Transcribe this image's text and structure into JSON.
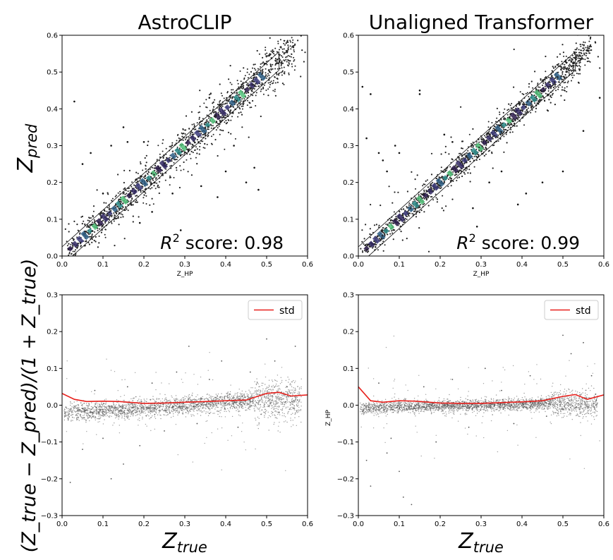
{
  "figure": {
    "y_label_top": "Z",
    "y_label_top_sub": "pred",
    "y_label_bottom": "(Z_true − Z_pred)/(1 + Z_true)",
    "x_label_bottom": "Z",
    "x_label_bottom_sub": "true"
  },
  "chart_data": [
    {
      "type": "scatter",
      "panel": "top-left",
      "title": "AstroCLIP",
      "xlabel": "Z_HP",
      "ylabel": "Z_pred",
      "xlim": [
        0,
        0.6
      ],
      "ylim": [
        0,
        0.6
      ],
      "xticks": [
        "0.0",
        "0.1",
        "0.2",
        "0.3",
        "0.4",
        "0.5",
        "0.6"
      ],
      "yticks": [
        "0.0",
        "0.1",
        "0.2",
        "0.3",
        "0.4",
        "0.5",
        "0.6"
      ],
      "annotation_prefix": "R",
      "annotation_sup": "2",
      "annotation_text": " score: 0.98",
      "r2": 0.98,
      "trend": {
        "x": [
          0.0,
          0.6
        ],
        "y": [
          0.0,
          0.6
        ],
        "spread": 0.016
      },
      "outliers": [
        {
          "x": 0.03,
          "y": 0.42
        },
        {
          "x": 0.05,
          "y": 0.25
        },
        {
          "x": 0.07,
          "y": 0.28
        },
        {
          "x": 0.12,
          "y": 0.3
        },
        {
          "x": 0.15,
          "y": 0.35
        },
        {
          "x": 0.16,
          "y": 0.31
        },
        {
          "x": 0.2,
          "y": 0.31
        },
        {
          "x": 0.22,
          "y": 0.12
        },
        {
          "x": 0.29,
          "y": 0.07
        },
        {
          "x": 0.34,
          "y": 0.19
        },
        {
          "x": 0.38,
          "y": 0.16
        },
        {
          "x": 0.4,
          "y": 0.23
        },
        {
          "x": 0.42,
          "y": 0.3
        },
        {
          "x": 0.45,
          "y": 0.2
        },
        {
          "x": 0.47,
          "y": 0.24
        },
        {
          "x": 0.48,
          "y": 0.18
        },
        {
          "x": 0.36,
          "y": 0.43
        },
        {
          "x": 0.27,
          "y": 0.17
        },
        {
          "x": 0.19,
          "y": 0.09
        },
        {
          "x": 0.1,
          "y": 0.17
        }
      ]
    },
    {
      "type": "scatter",
      "panel": "top-right",
      "title": "Unaligned Transformer",
      "xlabel": "Z_HP",
      "ylabel": "",
      "xlim": [
        0,
        0.6
      ],
      "ylim": [
        0,
        0.6
      ],
      "xticks": [
        "0.0",
        "0.1",
        "0.2",
        "0.3",
        "0.4",
        "0.5",
        "0.6"
      ],
      "yticks": [
        "0.0",
        "0.1",
        "0.2",
        "0.3",
        "0.4",
        "0.5",
        "0.6"
      ],
      "annotation_prefix": "R",
      "annotation_sup": "2",
      "annotation_text": " score: 0.99",
      "r2": 0.99,
      "trend": {
        "x": [
          0.0,
          0.6
        ],
        "y": [
          0.0,
          0.6
        ],
        "spread": 0.011
      },
      "outliers": [
        {
          "x": 0.01,
          "y": 0.46
        },
        {
          "x": 0.02,
          "y": 0.32
        },
        {
          "x": 0.03,
          "y": 0.44
        },
        {
          "x": 0.05,
          "y": 0.28
        },
        {
          "x": 0.06,
          "y": 0.26
        },
        {
          "x": 0.07,
          "y": 0.23
        },
        {
          "x": 0.09,
          "y": 0.3
        },
        {
          "x": 0.1,
          "y": 0.28
        },
        {
          "x": 0.15,
          "y": 0.45
        },
        {
          "x": 0.15,
          "y": 0.44
        },
        {
          "x": 0.21,
          "y": 0.33
        },
        {
          "x": 0.23,
          "y": 0.31
        },
        {
          "x": 0.28,
          "y": 0.13
        },
        {
          "x": 0.32,
          "y": 0.2
        },
        {
          "x": 0.35,
          "y": 0.23
        },
        {
          "x": 0.41,
          "y": 0.17
        },
        {
          "x": 0.45,
          "y": 0.2
        },
        {
          "x": 0.5,
          "y": 0.23
        },
        {
          "x": 0.55,
          "y": 0.34
        },
        {
          "x": 0.59,
          "y": 0.43
        },
        {
          "x": 0.39,
          "y": 0.14
        },
        {
          "x": 0.29,
          "y": 0.08
        }
      ]
    },
    {
      "type": "scatter",
      "panel": "bottom-left",
      "xlabel": "Z_true",
      "ylabel": "(Z_true − Z_pred)/(1 + Z_true)",
      "xlim": [
        0,
        0.6
      ],
      "ylim": [
        -0.3,
        0.3
      ],
      "xticks": [
        "0.0",
        "0.1",
        "0.2",
        "0.3",
        "0.4",
        "0.5",
        "0.6"
      ],
      "yticks": [
        "−0.3",
        "−0.2",
        "−0.1",
        "0.0",
        "0.1",
        "0.2",
        "0.3"
      ],
      "legend": {
        "label": "std",
        "color": "#e8201c",
        "placement": "top-right"
      },
      "band": {
        "x": [
          0.0,
          0.1,
          0.2,
          0.3,
          0.4,
          0.47
        ],
        "y": [
          -0.022,
          -0.015,
          -0.008,
          0.0,
          0.008,
          0.012
        ],
        "spread": 0.012
      },
      "scatter_points": [
        {
          "x": 0.05,
          "y": -0.12
        },
        {
          "x": 0.08,
          "y": 0.04
        },
        {
          "x": 0.1,
          "y": -0.09
        },
        {
          "x": 0.12,
          "y": -0.2
        },
        {
          "x": 0.16,
          "y": 0.05
        },
        {
          "x": 0.19,
          "y": -0.11
        },
        {
          "x": 0.22,
          "y": 0.06
        },
        {
          "x": 0.25,
          "y": -0.07
        },
        {
          "x": 0.28,
          "y": 0.09
        },
        {
          "x": 0.31,
          "y": 0.16
        },
        {
          "x": 0.33,
          "y": -0.05
        },
        {
          "x": 0.36,
          "y": 0.07
        },
        {
          "x": 0.39,
          "y": 0.12
        },
        {
          "x": 0.43,
          "y": -0.06
        },
        {
          "x": 0.46,
          "y": 0.09
        },
        {
          "x": 0.5,
          "y": 0.18
        },
        {
          "x": 0.52,
          "y": 0.12
        },
        {
          "x": 0.55,
          "y": 0.05
        },
        {
          "x": 0.57,
          "y": 0.16
        },
        {
          "x": 0.02,
          "y": -0.21
        },
        {
          "x": 0.15,
          "y": -0.16
        },
        {
          "x": 0.41,
          "y": 0.03
        },
        {
          "x": 0.53,
          "y": -0.02
        }
      ],
      "std_line": {
        "x": [
          0.0,
          0.03,
          0.06,
          0.1,
          0.14,
          0.2,
          0.25,
          0.3,
          0.35,
          0.4,
          0.45,
          0.5,
          0.53,
          0.56,
          0.6
        ],
        "y": [
          0.032,
          0.016,
          0.01,
          0.011,
          0.01,
          0.005,
          0.006,
          0.008,
          0.01,
          0.012,
          0.014,
          0.032,
          0.035,
          0.025,
          0.028
        ]
      }
    },
    {
      "type": "scatter",
      "panel": "bottom-right",
      "xlabel": "Z_true",
      "ylabel": "Z_HP",
      "xlim": [
        0,
        0.6
      ],
      "ylim": [
        -0.3,
        0.3
      ],
      "xticks": [
        "0.0",
        "0.1",
        "0.2",
        "0.3",
        "0.4",
        "0.5",
        "0.6"
      ],
      "yticks": [
        "−0.3",
        "−0.2",
        "−0.1",
        "0.0",
        "0.1",
        "0.2",
        "0.3"
      ],
      "legend": {
        "label": "std",
        "color": "#e8201c",
        "placement": "top-right"
      },
      "band": {
        "x": [
          0.0,
          0.1,
          0.2,
          0.3,
          0.4,
          0.47
        ],
        "y": [
          -0.008,
          -0.004,
          -0.002,
          0.0,
          0.002,
          0.004
        ],
        "spread": 0.008
      },
      "scatter_points": [
        {
          "x": 0.02,
          "y": -0.15
        },
        {
          "x": 0.03,
          "y": -0.22
        },
        {
          "x": 0.05,
          "y": 0.06
        },
        {
          "x": 0.08,
          "y": -0.09
        },
        {
          "x": 0.1,
          "y": -0.18
        },
        {
          "x": 0.13,
          "y": -0.27
        },
        {
          "x": 0.16,
          "y": 0.05
        },
        {
          "x": 0.19,
          "y": -0.1
        },
        {
          "x": 0.23,
          "y": 0.07
        },
        {
          "x": 0.27,
          "y": -0.06
        },
        {
          "x": 0.31,
          "y": 0.1
        },
        {
          "x": 0.35,
          "y": 0.04
        },
        {
          "x": 0.38,
          "y": -0.05
        },
        {
          "x": 0.42,
          "y": 0.08
        },
        {
          "x": 0.46,
          "y": -0.03
        },
        {
          "x": 0.5,
          "y": 0.19
        },
        {
          "x": 0.52,
          "y": 0.14
        },
        {
          "x": 0.55,
          "y": 0.17
        },
        {
          "x": 0.57,
          "y": 0.08
        },
        {
          "x": 0.58,
          "y": 0.03
        },
        {
          "x": 0.11,
          "y": -0.25
        },
        {
          "x": 0.07,
          "y": -0.13
        }
      ],
      "std_line": {
        "x": [
          0.0,
          0.03,
          0.06,
          0.1,
          0.14,
          0.2,
          0.25,
          0.3,
          0.35,
          0.4,
          0.45,
          0.5,
          0.53,
          0.56,
          0.6
        ],
        "y": [
          0.05,
          0.012,
          0.008,
          0.012,
          0.011,
          0.006,
          0.005,
          0.005,
          0.007,
          0.009,
          0.012,
          0.024,
          0.029,
          0.016,
          0.028
        ]
      }
    }
  ]
}
